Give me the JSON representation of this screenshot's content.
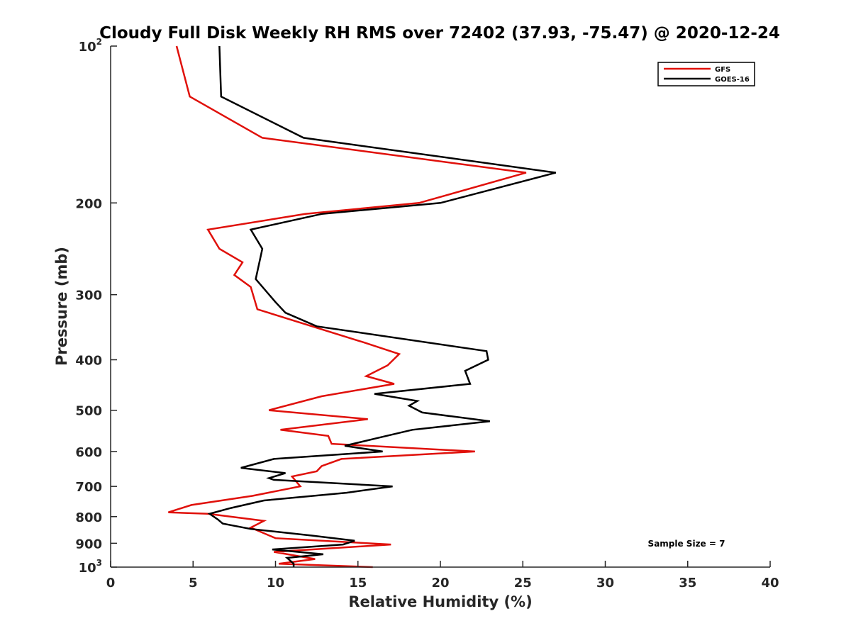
{
  "chart_data": {
    "type": "line",
    "title": "Cloudy Full Disk Weekly RH RMS over 72402 (37.93, -75.47) @ 2020-12-24",
    "xlabel": "Relative Humidity (%)",
    "ylabel": "Pressure (mb)",
    "xlim": [
      0,
      40
    ],
    "ylim": [
      100,
      1000
    ],
    "y_scale": "log",
    "y_reversed": true,
    "x_ticks": [
      "0",
      "5",
      "10",
      "15",
      "20",
      "25",
      "30",
      "35",
      "40"
    ],
    "y_ticks": [
      {
        "value": 100,
        "base": "10",
        "exp": "2"
      },
      {
        "value": 200,
        "label": "200"
      },
      {
        "value": 300,
        "label": "300"
      },
      {
        "value": 400,
        "label": "400"
      },
      {
        "value": 500,
        "label": "500"
      },
      {
        "value": 600,
        "label": "600"
      },
      {
        "value": 700,
        "label": "700"
      },
      {
        "value": 800,
        "label": "800"
      },
      {
        "value": 900,
        "label": "900"
      },
      {
        "value": 1000,
        "base": "10",
        "exp": "3"
      }
    ],
    "legend_position": "top-right",
    "annotation": "Sample Size = 7",
    "series": [
      {
        "name": "GFS",
        "color": "#e0100a",
        "points": [
          [
            4.0,
            100
          ],
          [
            4.8,
            125
          ],
          [
            9.2,
            150
          ],
          [
            25.2,
            175
          ],
          [
            18.7,
            200
          ],
          [
            11.8,
            210
          ],
          [
            5.9,
            225
          ],
          [
            6.6,
            245
          ],
          [
            8.0,
            260
          ],
          [
            7.5,
            275
          ],
          [
            8.5,
            290
          ],
          [
            8.9,
            320
          ],
          [
            15.3,
            370
          ],
          [
            17.5,
            390
          ],
          [
            16.8,
            410
          ],
          [
            15.5,
            430
          ],
          [
            17.2,
            445
          ],
          [
            12.8,
            470
          ],
          [
            9.6,
            500
          ],
          [
            15.6,
            520
          ],
          [
            10.3,
            545
          ],
          [
            13.2,
            560
          ],
          [
            13.4,
            580
          ],
          [
            22.1,
            600
          ],
          [
            14.0,
            620
          ],
          [
            12.8,
            640
          ],
          [
            12.5,
            655
          ],
          [
            11.0,
            670
          ],
          [
            11.5,
            700
          ],
          [
            8.6,
            730
          ],
          [
            4.9,
            760
          ],
          [
            3.5,
            785
          ],
          [
            5.9,
            790
          ],
          [
            9.3,
            815
          ],
          [
            8.5,
            840
          ],
          [
            10.0,
            880
          ],
          [
            17.0,
            905
          ],
          [
            9.9,
            935
          ],
          [
            12.4,
            965
          ],
          [
            10.2,
            985
          ],
          [
            15.9,
            1000
          ]
        ]
      },
      {
        "name": "GOES-16",
        "color": "#000000",
        "points": [
          [
            6.6,
            100
          ],
          [
            6.7,
            125
          ],
          [
            11.7,
            150
          ],
          [
            27.0,
            175
          ],
          [
            20.0,
            200
          ],
          [
            12.8,
            210
          ],
          [
            8.5,
            225
          ],
          [
            9.2,
            245
          ],
          [
            8.8,
            280
          ],
          [
            10.0,
            310
          ],
          [
            10.6,
            325
          ],
          [
            12.5,
            345
          ],
          [
            22.8,
            385
          ],
          [
            22.9,
            400
          ],
          [
            21.5,
            420
          ],
          [
            21.8,
            445
          ],
          [
            16.0,
            465
          ],
          [
            18.6,
            480
          ],
          [
            18.1,
            490
          ],
          [
            18.9,
            505
          ],
          [
            23.0,
            525
          ],
          [
            18.3,
            545
          ],
          [
            16.2,
            565
          ],
          [
            14.2,
            585
          ],
          [
            16.5,
            600
          ],
          [
            9.9,
            620
          ],
          [
            7.9,
            645
          ],
          [
            10.6,
            660
          ],
          [
            9.6,
            675
          ],
          [
            9.9,
            680
          ],
          [
            17.1,
            700
          ],
          [
            14.3,
            720
          ],
          [
            9.3,
            745
          ],
          [
            7.3,
            770
          ],
          [
            6.0,
            790
          ],
          [
            6.5,
            810
          ],
          [
            6.8,
            825
          ],
          [
            8.5,
            845
          ],
          [
            12.2,
            870
          ],
          [
            14.8,
            890
          ],
          [
            14.1,
            905
          ],
          [
            9.8,
            925
          ],
          [
            12.9,
            945
          ],
          [
            10.7,
            960
          ],
          [
            11.1,
            985
          ],
          [
            11.1,
            1000
          ]
        ]
      }
    ]
  }
}
